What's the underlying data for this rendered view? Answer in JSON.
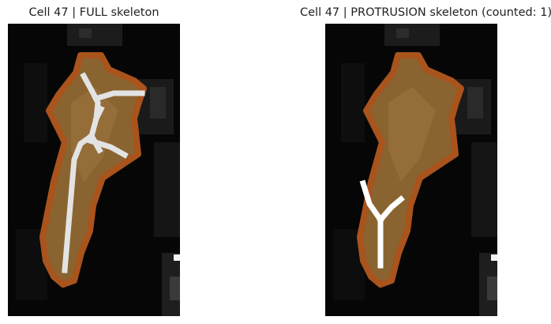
{
  "figure": {
    "left_panel": {
      "title": "Cell 47 | FULL skeleton"
    },
    "right_panel": {
      "title": "Cell 47 | PROTRUSION skeleton (counted: 1)"
    }
  },
  "colors": {
    "background": "#060606",
    "cell_fill": "#8a6430",
    "cell_outline": "#a9531d",
    "skeleton_full": "#e3e3e3",
    "skeleton_protrusion": "#ffffff"
  }
}
